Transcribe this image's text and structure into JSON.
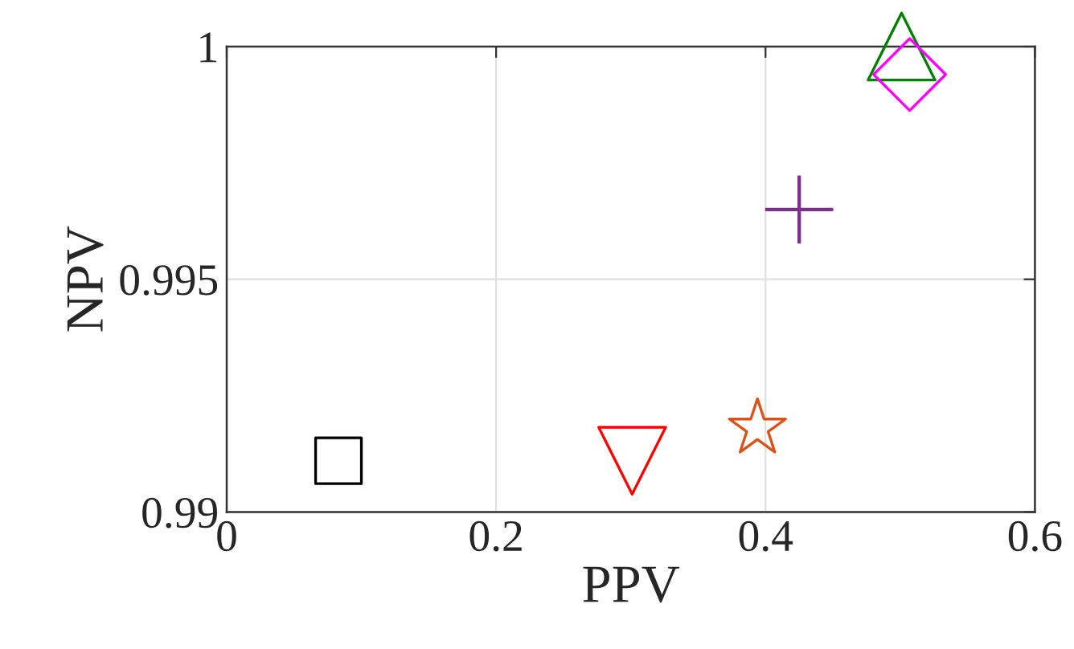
{
  "chart_data": {
    "type": "scatter",
    "xlabel": "PPV",
    "ylabel": "NPV",
    "xlim": [
      0,
      0.6
    ],
    "xticks": [
      0,
      0.2,
      0.4,
      0.6
    ],
    "ylim": [
      0.99,
      1
    ],
    "yticks": [
      0.99,
      0.995,
      1
    ],
    "grid": true,
    "series": [
      {
        "color": "#000000",
        "marker": "square",
        "x": [
          0.083
        ],
        "values": [
          0.9911
        ]
      },
      {
        "color": "#ff0000",
        "marker": "triangle_down",
        "x": [
          0.301
        ],
        "values": [
          0.9911
        ]
      },
      {
        "color": "#d95319",
        "marker": "star",
        "x": [
          0.394
        ],
        "values": [
          0.9918
        ]
      },
      {
        "color": "#7e2f8e",
        "marker": "cross",
        "x": [
          0.425
        ],
        "values": [
          0.9965
        ]
      },
      {
        "color": "#008000",
        "marker": "triangle",
        "x": [
          0.501
        ],
        "values": [
          1.0
        ]
      },
      {
        "color": "#ff00ff",
        "marker": "diamond",
        "x": [
          0.507
        ],
        "values": [
          0.9994
        ]
      }
    ]
  }
}
